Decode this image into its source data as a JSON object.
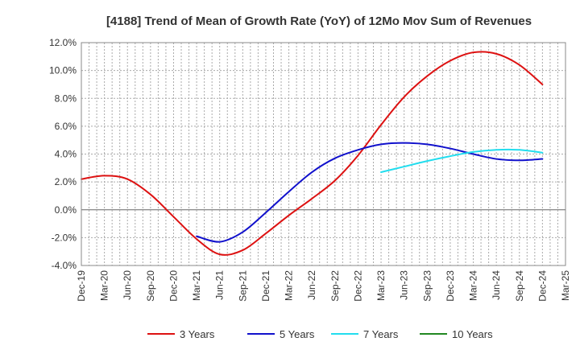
{
  "chart_data": {
    "type": "line",
    "title": "[4188]  Trend of Mean of Growth Rate (YoY) of 12Mo Mov Sum of Revenues",
    "xlabel": "",
    "ylabel": "",
    "ylim": [
      -4.0,
      12.0
    ],
    "y_ticks": [
      "12.0%",
      "10.0%",
      "8.0%",
      "6.0%",
      "4.0%",
      "2.0%",
      "0.0%",
      "-2.0%",
      "-4.0%"
    ],
    "y_tick_values": [
      12,
      10,
      8,
      6,
      4,
      2,
      0,
      -2,
      -4
    ],
    "x_ticks": [
      "Dec-19",
      "Mar-20",
      "Jun-20",
      "Sep-20",
      "Dec-20",
      "Mar-21",
      "Jun-21",
      "Sep-21",
      "Dec-21",
      "Mar-22",
      "Jun-22",
      "Sep-22",
      "Dec-22",
      "Mar-23",
      "Jun-23",
      "Sep-23",
      "Dec-23",
      "Mar-24",
      "Jun-24",
      "Sep-24",
      "Dec-24",
      "Mar-25"
    ],
    "grid": true,
    "legend_position": "bottom",
    "series": [
      {
        "name": "3 Years",
        "color": "#dd1111",
        "points": [
          [
            0,
            2.2
          ],
          [
            1,
            2.45
          ],
          [
            2,
            2.2
          ],
          [
            3,
            1.1
          ],
          [
            4,
            -0.5
          ],
          [
            5,
            -2.1
          ],
          [
            6,
            -3.2
          ],
          [
            7,
            -2.9
          ],
          [
            8,
            -1.7
          ],
          [
            9,
            -0.4
          ],
          [
            10,
            0.8
          ],
          [
            11,
            2.1
          ],
          [
            12,
            3.9
          ],
          [
            13,
            6.1
          ],
          [
            14,
            8.1
          ],
          [
            15,
            9.6
          ],
          [
            16,
            10.7
          ],
          [
            17,
            11.3
          ],
          [
            18,
            11.2
          ],
          [
            19,
            10.4
          ],
          [
            20,
            9.0
          ]
        ]
      },
      {
        "name": "5 Years",
        "color": "#1111cc",
        "points": [
          [
            5,
            -1.9
          ],
          [
            6,
            -2.3
          ],
          [
            7,
            -1.6
          ],
          [
            8,
            -0.2
          ],
          [
            9,
            1.3
          ],
          [
            10,
            2.7
          ],
          [
            11,
            3.7
          ],
          [
            12,
            4.3
          ],
          [
            13,
            4.7
          ],
          [
            14,
            4.8
          ],
          [
            15,
            4.7
          ],
          [
            16,
            4.4
          ],
          [
            17,
            4.0
          ],
          [
            18,
            3.65
          ],
          [
            19,
            3.55
          ],
          [
            20,
            3.65
          ]
        ]
      },
      {
        "name": "7 Years",
        "color": "#22ddee",
        "points": [
          [
            13,
            2.7
          ],
          [
            14,
            3.1
          ],
          [
            15,
            3.5
          ],
          [
            16,
            3.85
          ],
          [
            17,
            4.15
          ],
          [
            18,
            4.3
          ],
          [
            19,
            4.3
          ],
          [
            20,
            4.1
          ]
        ]
      },
      {
        "name": "10 Years",
        "color": "#228822",
        "points": []
      }
    ]
  }
}
